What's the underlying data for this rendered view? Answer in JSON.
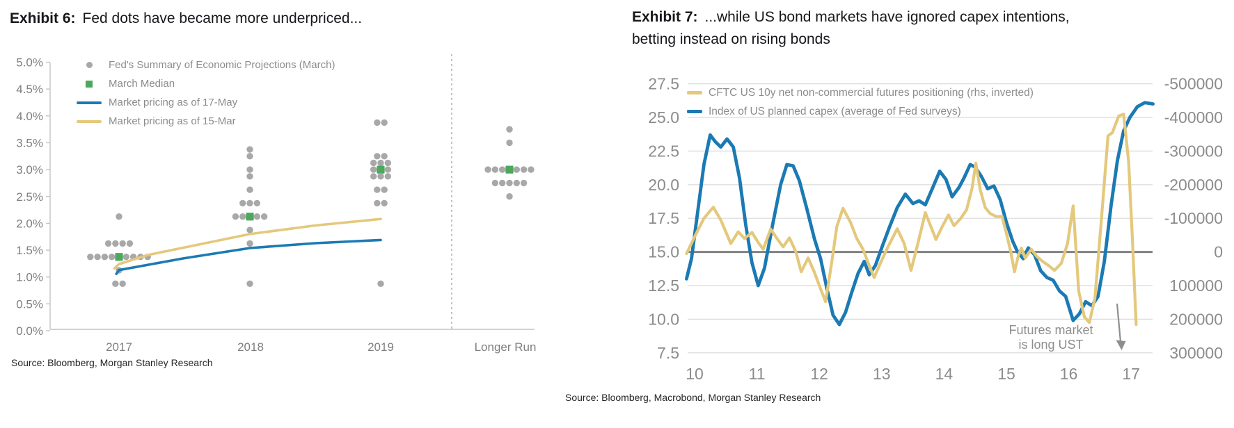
{
  "colors": {
    "blue": "#1b7ab3",
    "yellow": "#e4c87c",
    "dot": "#a8a8a8",
    "green": "#4ca85c",
    "grid": "#d9d9d9",
    "zero": "#7f7f7f",
    "axis": "#c4c4c4",
    "tick_text": "#7f7f7f",
    "axis_text": "#8c8c8c",
    "annotation": "#8e8e8e"
  },
  "exhibit6": {
    "label": "Exhibit 6:",
    "title": "Fed dots have became more underpriced...",
    "source": "Source: Bloomberg, Morgan Stanley Research",
    "legend": [
      {
        "symbol": "dot-icon",
        "label": "Fed's Summary of Economic Projections (March)"
      },
      {
        "symbol": "square-icon",
        "label": "March Median"
      },
      {
        "symbol": "blue-line-icon",
        "label": "Market pricing as of 17-May"
      },
      {
        "symbol": "yellow-line-icon",
        "label": "Market pricing as of 15-Mar"
      }
    ],
    "chart_data": {
      "type": "scatter",
      "title": "Fed dots have became more underpriced...",
      "y_ticks": [
        "5.0%",
        "4.5%",
        "4.0%",
        "3.5%",
        "3.0%",
        "2.5%",
        "2.0%",
        "1.5%",
        "1.0%",
        "0.5%",
        "0.0%"
      ],
      "ylim": [
        0,
        5
      ],
      "x_categories": [
        "2017",
        "2018",
        "2019",
        "Longer Run"
      ],
      "columns": [
        {
          "label": "2017",
          "median_value": 1.375,
          "rows": [
            {
              "value": 2.125,
              "count": 1
            },
            {
              "value": 1.625,
              "count": 4
            },
            {
              "value": 1.375,
              "median": true,
              "left": 4,
              "right": 4
            },
            {
              "value": 1.125,
              "count": 1
            },
            {
              "value": 0.875,
              "count": 2
            }
          ]
        },
        {
          "label": "2018",
          "median_value": 2.125,
          "rows": [
            {
              "value": 3.375,
              "count": 1
            },
            {
              "value": 3.25,
              "count": 1
            },
            {
              "value": 3.0,
              "count": 1
            },
            {
              "value": 2.875,
              "count": 1
            },
            {
              "value": 2.625,
              "count": 1
            },
            {
              "value": 2.375,
              "count": 3
            },
            {
              "value": 2.125,
              "median": true,
              "left": 2,
              "right": 2
            },
            {
              "value": 1.875,
              "count": 1
            },
            {
              "value": 1.625,
              "count": 1
            },
            {
              "value": 0.875,
              "count": 1
            }
          ]
        },
        {
          "label": "2019",
          "median_value": 3.0,
          "rows": [
            {
              "value": 3.875,
              "count": 2
            },
            {
              "value": 3.25,
              "count": 2
            },
            {
              "value": 3.125,
              "count": 3
            },
            {
              "value": 3.0,
              "median": true,
              "left": 1,
              "right": 1
            },
            {
              "value": 2.875,
              "count": 3
            },
            {
              "value": 2.625,
              "count": 2
            },
            {
              "value": 2.375,
              "count": 2
            },
            {
              "value": 0.875,
              "count": 1
            }
          ]
        },
        {
          "label": "Longer Run",
          "median_value": 3.0,
          "rows": [
            {
              "value": 3.75,
              "count": 1
            },
            {
              "value": 3.5,
              "count": 1
            },
            {
              "value": 3.0,
              "median": true,
              "left": 3,
              "right": 3
            },
            {
              "value": 2.75,
              "count": 5
            },
            {
              "value": 2.5,
              "count": 1
            }
          ]
        }
      ],
      "market_lines": [
        {
          "name": "Market pricing as of 17-May",
          "color_key": "blue",
          "points": [
            [
              -0.02,
              1.06
            ],
            [
              0,
              1.13
            ],
            [
              0.5,
              1.35
            ],
            [
              1,
              1.54
            ],
            [
              1.5,
              1.63
            ],
            [
              2,
              1.69
            ]
          ]
        },
        {
          "name": "Market pricing as of 15-Mar",
          "color_key": "yellow",
          "points": [
            [
              -0.035,
              1.16
            ],
            [
              0,
              1.24
            ],
            [
              0.22,
              1.41
            ],
            [
              1,
              1.8
            ],
            [
              1.5,
              1.96
            ],
            [
              2,
              2.08
            ]
          ]
        }
      ]
    }
  },
  "exhibit7": {
    "label": "Exhibit 7:",
    "title_line1": "...while US bond markets have ignored capex intentions,",
    "title_line2": "betting instead on rising bonds",
    "source": "Source: Bloomberg, Macrobond, Morgan Stanley Research",
    "legend": [
      {
        "symbol": "yellow-line-icon",
        "label": "CFTC US 10y net non-commercial futures positioning (rhs, inverted)"
      },
      {
        "symbol": "blue-line-icon",
        "label": "Index of US planned capex (average of Fed surveys)"
      }
    ],
    "annotation": {
      "line1": "Futures market",
      "line2": "is long UST"
    },
    "chart_data": {
      "type": "line",
      "left_ticks": [
        "27.5",
        "25.0",
        "22.5",
        "20.0",
        "17.5",
        "15.0",
        "12.5",
        "10.0",
        "7.5"
      ],
      "right_ticks": [
        "-500000",
        "-400000",
        "-300000",
        "-200000",
        "-100000",
        "0",
        "100000",
        "200000",
        "300000"
      ],
      "left_ylim": [
        7.5,
        27.5
      ],
      "right_ylim_inverted": [
        300000,
        -500000
      ],
      "x_ticks": [
        "10",
        "11",
        "12",
        "13",
        "14",
        "15",
        "16",
        "17"
      ],
      "zero_line_left_value": 15,
      "series": [
        {
          "name": "CFTC US 10y net non-commercial futures positioning (rhs, inverted)",
          "axis": "right",
          "color_key": "yellow",
          "points": [
            [
              9.87,
              5000
            ],
            [
              10.0,
              -45000
            ],
            [
              10.15,
              -100000
            ],
            [
              10.3,
              -133000
            ],
            [
              10.42,
              -95000
            ],
            [
              10.5,
              -60000
            ],
            [
              10.58,
              -25000
            ],
            [
              10.7,
              -60000
            ],
            [
              10.8,
              -40000
            ],
            [
              10.92,
              -58000
            ],
            [
              11.02,
              -28000
            ],
            [
              11.1,
              -8000
            ],
            [
              11.22,
              -68000
            ],
            [
              11.32,
              -40000
            ],
            [
              11.42,
              -15000
            ],
            [
              11.52,
              -42000
            ],
            [
              11.62,
              -2000
            ],
            [
              11.71,
              59000
            ],
            [
              11.82,
              18000
            ],
            [
              11.92,
              60000
            ],
            [
              12.02,
              110000
            ],
            [
              12.1,
              148000
            ],
            [
              12.2,
              30000
            ],
            [
              12.28,
              -75000
            ],
            [
              12.38,
              -130000
            ],
            [
              12.5,
              -88000
            ],
            [
              12.6,
              -40000
            ],
            [
              12.7,
              -8000
            ],
            [
              12.8,
              40000
            ],
            [
              12.88,
              76000
            ],
            [
              13.0,
              25000
            ],
            [
              13.1,
              -15000
            ],
            [
              13.25,
              -69000
            ],
            [
              13.36,
              -25000
            ],
            [
              13.47,
              55000
            ],
            [
              13.58,
              -25000
            ],
            [
              13.7,
              -117000
            ],
            [
              13.8,
              -70000
            ],
            [
              13.87,
              -37000
            ],
            [
              13.97,
              -75000
            ],
            [
              14.07,
              -110000
            ],
            [
              14.16,
              -78000
            ],
            [
              14.26,
              -98000
            ],
            [
              14.36,
              -125000
            ],
            [
              14.45,
              -190000
            ],
            [
              14.51,
              -264000
            ],
            [
              14.58,
              -185000
            ],
            [
              14.66,
              -132000
            ],
            [
              14.74,
              -114000
            ],
            [
              14.84,
              -105000
            ],
            [
              14.93,
              -106000
            ],
            [
              15.0,
              -55000
            ],
            [
              15.07,
              0
            ],
            [
              15.13,
              59000
            ],
            [
              15.19,
              12000
            ],
            [
              15.24,
              -12000
            ],
            [
              15.3,
              18000
            ],
            [
              15.4,
              -8000
            ],
            [
              15.49,
              14000
            ],
            [
              15.58,
              28000
            ],
            [
              15.68,
              41000
            ],
            [
              15.77,
              55000
            ],
            [
              15.88,
              34000
            ],
            [
              15.98,
              -25000
            ],
            [
              16.07,
              -137000
            ],
            [
              16.16,
              117000
            ],
            [
              16.25,
              193000
            ],
            [
              16.33,
              210000
            ],
            [
              16.42,
              137000
            ],
            [
              16.52,
              -89000
            ],
            [
              16.63,
              -345000
            ],
            [
              16.7,
              -355000
            ],
            [
              16.8,
              -404000
            ],
            [
              16.88,
              -410000
            ],
            [
              16.96,
              -268000
            ],
            [
              17.02,
              -40000
            ],
            [
              17.08,
              216000
            ]
          ]
        },
        {
          "name": "Index of US planned capex (average of Fed surveys)",
          "axis": "left",
          "color_key": "blue",
          "points": [
            [
              9.87,
              13.0
            ],
            [
              9.95,
              14.5
            ],
            [
              10.05,
              18.0
            ],
            [
              10.15,
              21.5
            ],
            [
              10.25,
              23.7
            ],
            [
              10.33,
              23.2
            ],
            [
              10.42,
              22.8
            ],
            [
              10.52,
              23.4
            ],
            [
              10.62,
              22.8
            ],
            [
              10.72,
              20.5
            ],
            [
              10.82,
              17.0
            ],
            [
              10.92,
              14.2
            ],
            [
              11.02,
              12.5
            ],
            [
              11.12,
              13.8
            ],
            [
              11.25,
              17.0
            ],
            [
              11.38,
              20.0
            ],
            [
              11.48,
              21.5
            ],
            [
              11.58,
              21.4
            ],
            [
              11.68,
              20.3
            ],
            [
              11.8,
              18.2
            ],
            [
              11.92,
              16.0
            ],
            [
              12.02,
              14.5
            ],
            [
              12.12,
              12.3
            ],
            [
              12.22,
              10.3
            ],
            [
              12.32,
              9.6
            ],
            [
              12.42,
              10.5
            ],
            [
              12.52,
              12.0
            ],
            [
              12.62,
              13.4
            ],
            [
              12.72,
              14.3
            ],
            [
              12.8,
              13.3
            ],
            [
              12.9,
              14.0
            ],
            [
              13.0,
              15.3
            ],
            [
              13.12,
              16.8
            ],
            [
              13.25,
              18.3
            ],
            [
              13.38,
              19.3
            ],
            [
              13.5,
              18.6
            ],
            [
              13.6,
              18.8
            ],
            [
              13.7,
              18.5
            ],
            [
              13.82,
              19.8
            ],
            [
              13.93,
              21.0
            ],
            [
              14.03,
              20.4
            ],
            [
              14.13,
              19.1
            ],
            [
              14.24,
              19.8
            ],
            [
              14.32,
              20.5
            ],
            [
              14.42,
              21.5
            ],
            [
              14.5,
              21.3
            ],
            [
              14.6,
              20.6
            ],
            [
              14.7,
              19.7
            ],
            [
              14.8,
              19.9
            ],
            [
              14.9,
              18.9
            ],
            [
              15.0,
              17.2
            ],
            [
              15.1,
              15.8
            ],
            [
              15.18,
              15.0
            ],
            [
              15.27,
              14.5
            ],
            [
              15.35,
              15.3
            ],
            [
              15.45,
              14.8
            ],
            [
              15.55,
              13.6
            ],
            [
              15.65,
              13.1
            ],
            [
              15.75,
              12.9
            ],
            [
              15.85,
              12.1
            ],
            [
              15.95,
              11.7
            ],
            [
              16.07,
              9.9
            ],
            [
              16.17,
              10.4
            ],
            [
              16.27,
              11.3
            ],
            [
              16.37,
              11.0
            ],
            [
              16.47,
              11.7
            ],
            [
              16.57,
              14.3
            ],
            [
              16.68,
              18.5
            ],
            [
              16.78,
              21.8
            ],
            [
              16.88,
              24.0
            ],
            [
              16.98,
              25.0
            ],
            [
              17.1,
              25.8
            ],
            [
              17.22,
              26.1
            ],
            [
              17.35,
              26.0
            ]
          ]
        }
      ]
    }
  }
}
